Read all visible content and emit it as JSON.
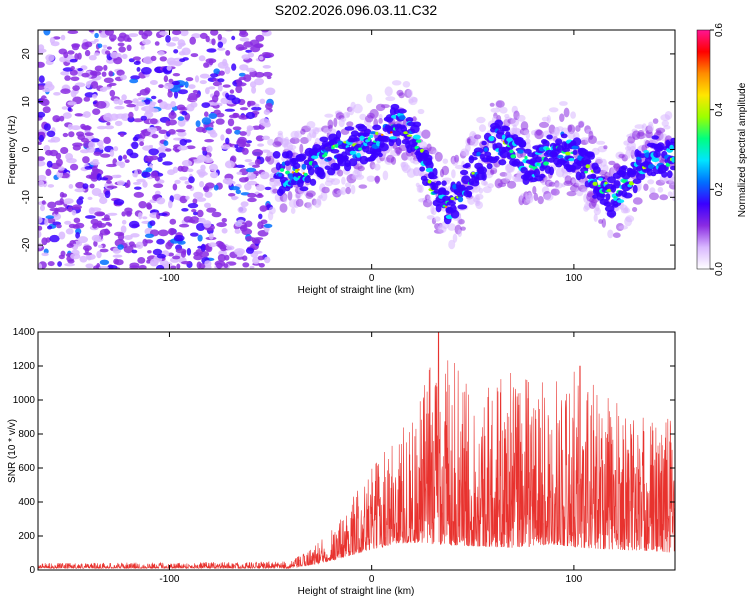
{
  "figure": {
    "title": "S202.2026.096.03.11.C32"
  },
  "chart_data": [
    {
      "type": "heatmap",
      "xlabel": "Height of straight line (km)",
      "ylabel": "Frequency (Hz)",
      "xlim": [
        -165,
        150
      ],
      "ylim": [
        -25,
        25
      ],
      "x_ticks": [
        -100,
        0,
        100
      ],
      "y_ticks": [
        -20,
        -10,
        0,
        10,
        20
      ],
      "colorbar": {
        "label": "Normalized spectral amplitude",
        "range": [
          0.0,
          0.6
        ],
        "ticks": [
          "0.0",
          "0.2",
          "0.4",
          "0.6"
        ],
        "colors": [
          "#ffffff",
          "#d9b8ff",
          "#8a2be2",
          "#3a00ff",
          "#0070ff",
          "#00e5ff",
          "#00ff80",
          "#9cff00",
          "#ffe600",
          "#ff8c00",
          "#ff0000",
          "#ff1493"
        ]
      },
      "noise_region_x": [
        -165,
        -50
      ],
      "signal_ridge": [
        {
          "x": -45,
          "y": -5
        },
        {
          "x": -35,
          "y": -5
        },
        {
          "x": -25,
          "y": -2
        },
        {
          "x": -15,
          "y": 0
        },
        {
          "x": -5,
          "y": 1
        },
        {
          "x": 5,
          "y": 3
        },
        {
          "x": 15,
          "y": 6
        },
        {
          "x": 22,
          "y": 2
        },
        {
          "x": 30,
          "y": -8
        },
        {
          "x": 38,
          "y": -12
        },
        {
          "x": 45,
          "y": -8
        },
        {
          "x": 55,
          "y": -2
        },
        {
          "x": 62,
          "y": 2
        },
        {
          "x": 72,
          "y": -1
        },
        {
          "x": 80,
          "y": -4
        },
        {
          "x": 88,
          "y": -1
        },
        {
          "x": 95,
          "y": 1
        },
        {
          "x": 105,
          "y": -3
        },
        {
          "x": 112,
          "y": -7
        },
        {
          "x": 120,
          "y": -10
        },
        {
          "x": 130,
          "y": -5
        },
        {
          "x": 140,
          "y": -1
        },
        {
          "x": 148,
          "y": -2
        }
      ]
    },
    {
      "type": "line",
      "xlabel": "Height of straight line (km)",
      "ylabel": "SNR (10 * v/v)",
      "xlim": [
        -165,
        150
      ],
      "ylim": [
        0,
        1400
      ],
      "x_ticks": [
        -100,
        0,
        100
      ],
      "y_ticks": [
        0,
        200,
        400,
        600,
        800,
        1000,
        1200,
        1400
      ],
      "color": "#e8322e",
      "envelope": [
        {
          "x": -165,
          "baseline": 10,
          "max": 40
        },
        {
          "x": -40,
          "baseline": 10,
          "max": 50
        },
        {
          "x": -35,
          "baseline": 20,
          "max": 90
        },
        {
          "x": -25,
          "baseline": 40,
          "max": 180
        },
        {
          "x": -15,
          "baseline": 70,
          "max": 330
        },
        {
          "x": 0,
          "baseline": 120,
          "max": 600
        },
        {
          "x": 10,
          "baseline": 150,
          "max": 800
        },
        {
          "x": 20,
          "baseline": 160,
          "max": 900
        },
        {
          "x": 33,
          "baseline": 150,
          "max": 1400
        },
        {
          "x": 50,
          "baseline": 140,
          "max": 1050
        },
        {
          "x": 70,
          "baseline": 130,
          "max": 1180
        },
        {
          "x": 90,
          "baseline": 150,
          "max": 1100
        },
        {
          "x": 103,
          "baseline": 130,
          "max": 1200
        },
        {
          "x": 120,
          "baseline": 120,
          "max": 1000
        },
        {
          "x": 140,
          "baseline": 110,
          "max": 900
        },
        {
          "x": 150,
          "baseline": 100,
          "max": 1000
        }
      ]
    }
  ]
}
